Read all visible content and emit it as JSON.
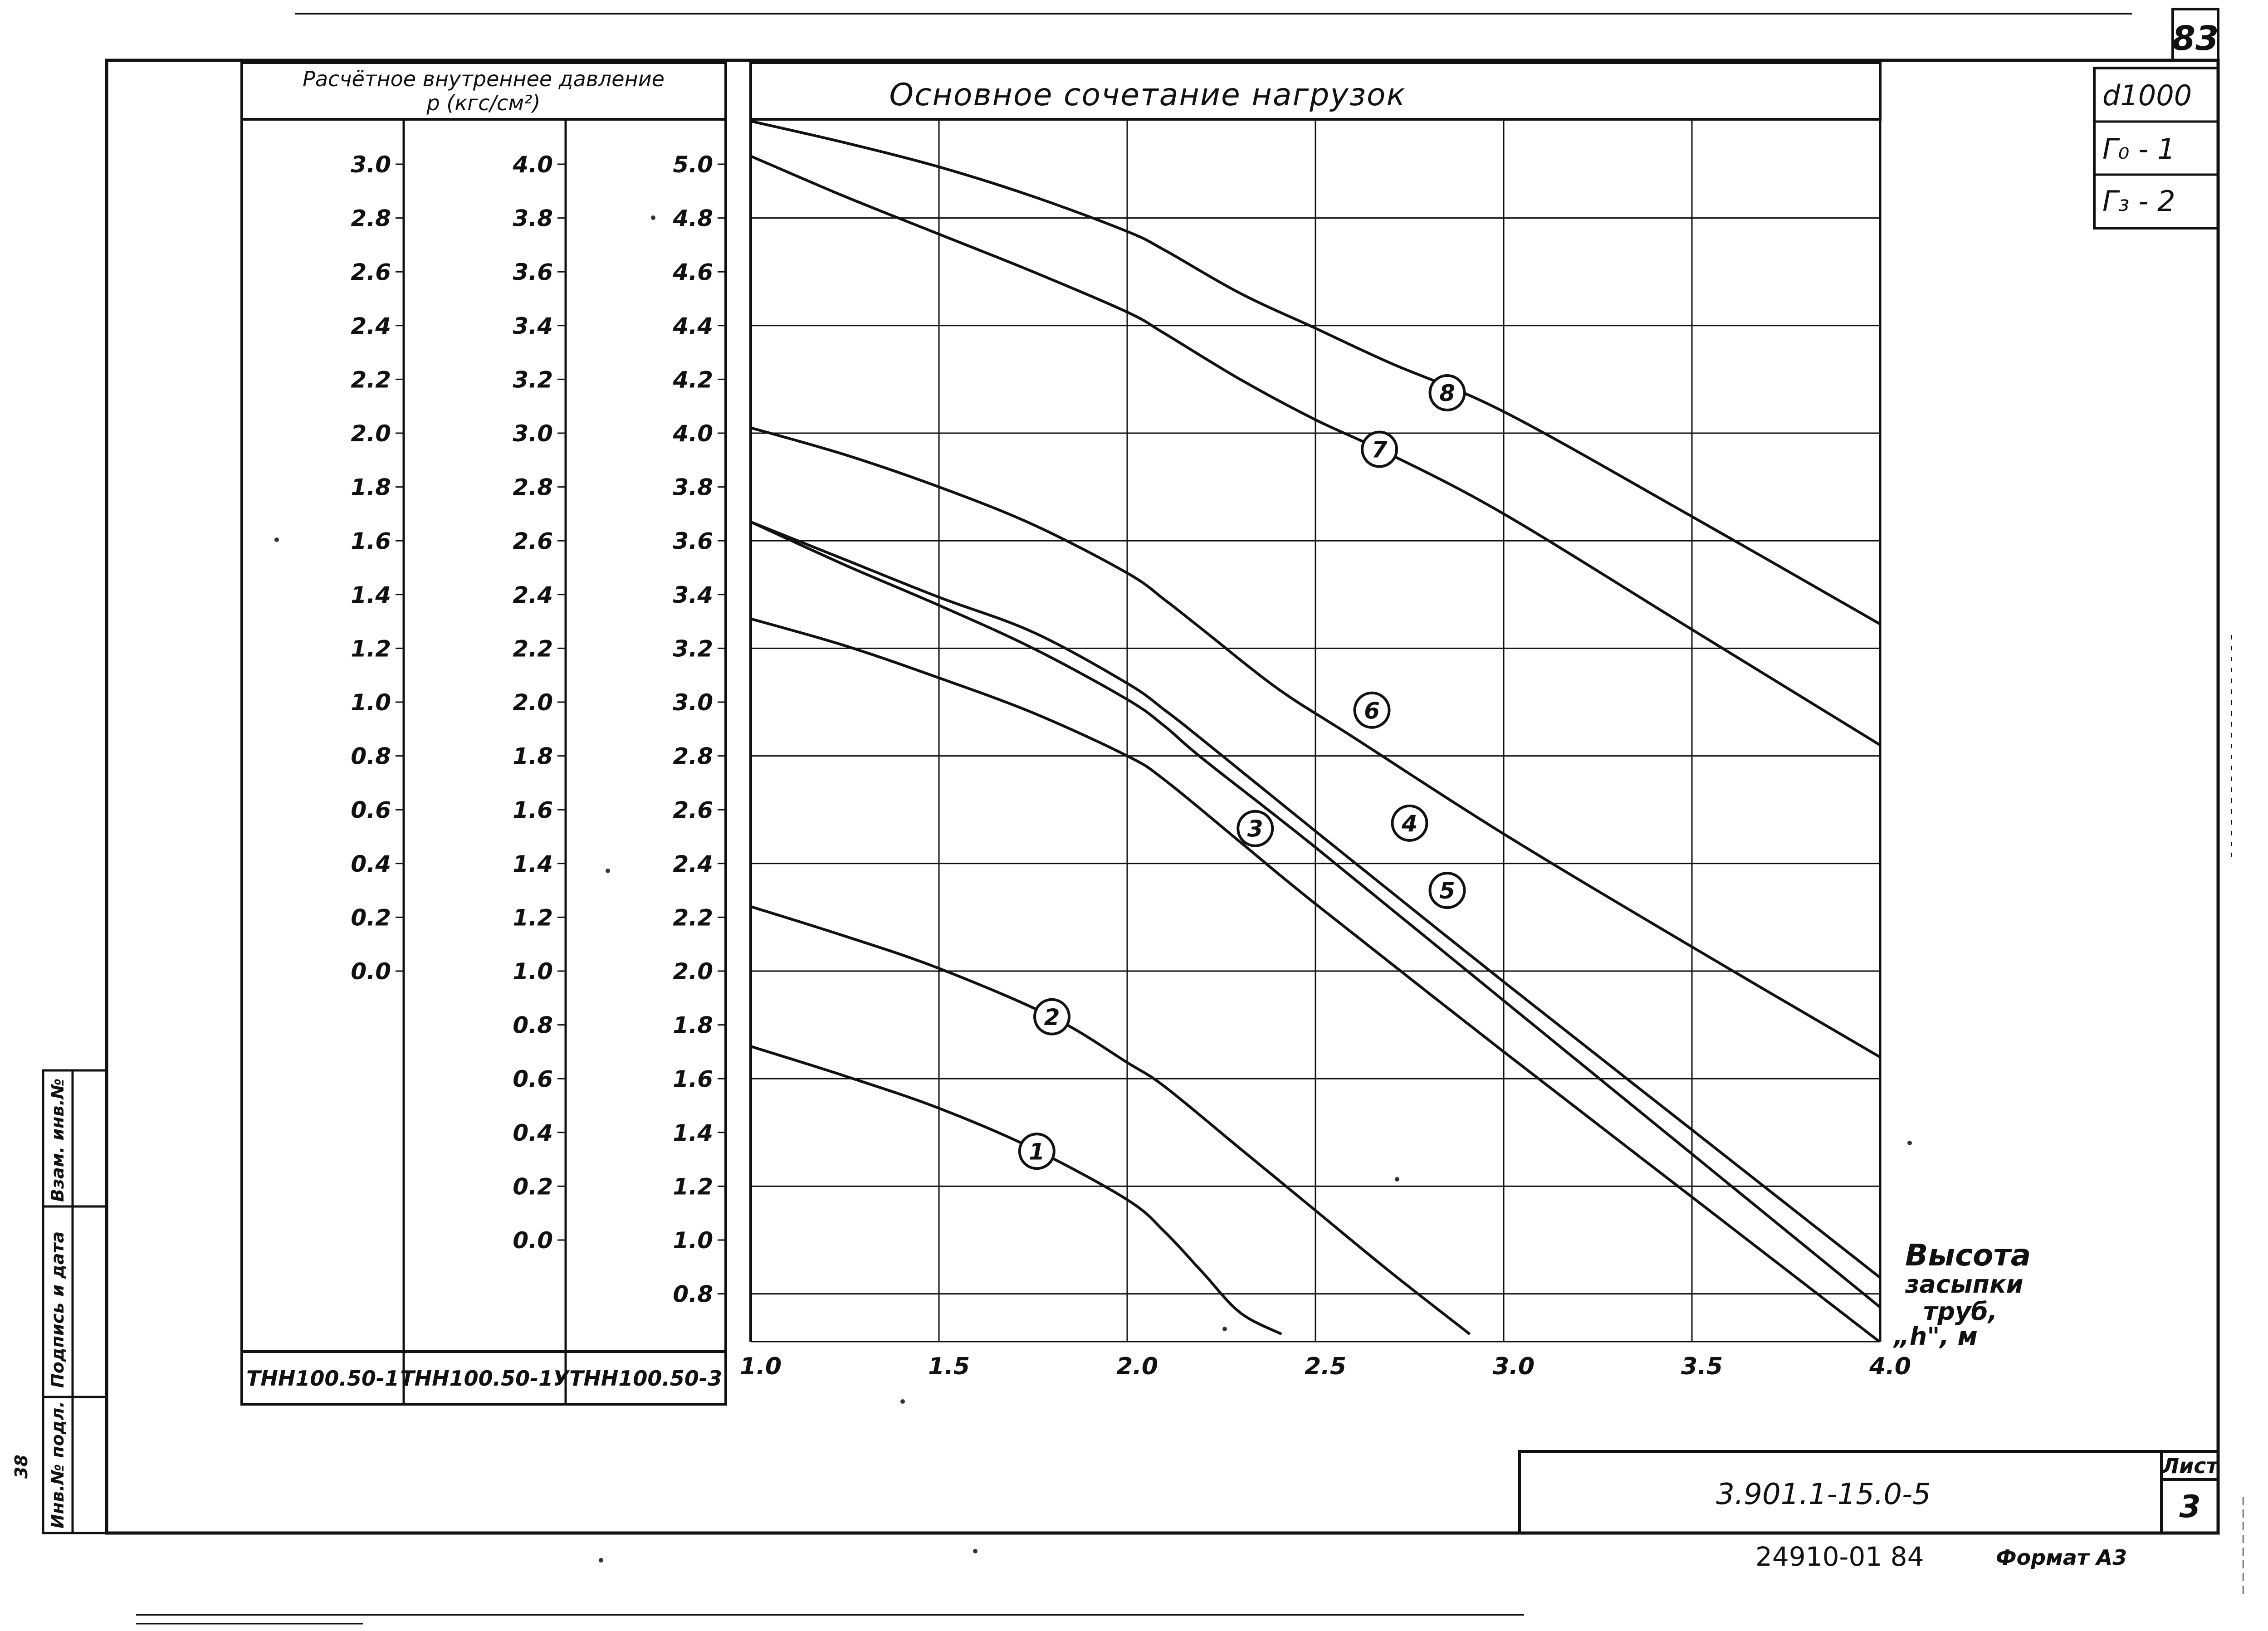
{
  "page": {
    "sheet_number": "83",
    "doc_code": "3.901.1-15.0-5",
    "sheet_label": "Лист",
    "sheet_value": "3",
    "footer_code": "24910-01   84",
    "format_label": "Формат А3",
    "stamp_d": "d1000",
    "stamp_g0": "Г₀ - 1",
    "stamp_g3": "Г₃ - 2",
    "side_labels": [
      "Инв.№ подл.",
      "Подпись и дата",
      "Взам. инв.№"
    ],
    "side_mark": "38"
  },
  "chart_data": {
    "type": "line",
    "title": "Основное сочетание нагрузок",
    "pressure_header_line1": "Расчётное внутреннее давление",
    "pressure_header_line2": "p (кгс/см²)",
    "xlabel_lines": [
      "Высота",
      "засыпки",
      "труб,",
      "„h\", м"
    ],
    "xlim": [
      1.0,
      4.0
    ],
    "x_ticks": [
      "1.0",
      "1.5",
      "2.0",
      "2.5",
      "3.0",
      "3.5",
      "4.0"
    ],
    "x_tick_values": [
      1.0,
      1.5,
      2.0,
      2.5,
      3.0,
      3.5,
      4.0
    ],
    "ylim": [
      0.65,
      5.2
    ],
    "grid": true,
    "pressure_scales": [
      {
        "name": "ТНН100.50-1",
        "ticks": [
          "3.0",
          "2.8",
          "2.6",
          "2.4",
          "2.2",
          "2.0",
          "1.8",
          "1.6",
          "1.4",
          "1.2",
          "1.0",
          "0.8",
          "0.6",
          "0.4",
          "0.2",
          "0.0"
        ],
        "tick_positions": [
          5.0,
          4.8,
          4.6,
          4.4,
          4.2,
          4.0,
          3.8,
          3.6,
          3.4,
          3.2,
          3.0,
          2.8,
          2.6,
          2.4,
          2.2,
          2.0
        ]
      },
      {
        "name": "ТНН100.50-1У",
        "ticks": [
          "4.0",
          "3.8",
          "3.6",
          "3.4",
          "3.2",
          "3.0",
          "2.8",
          "2.6",
          "2.4",
          "2.2",
          "2.0",
          "1.8",
          "1.6",
          "1.4",
          "1.2",
          "1.0",
          "0.8",
          "0.6",
          "0.4",
          "0.2",
          "0.0"
        ],
        "tick_positions": [
          5.0,
          4.8,
          4.6,
          4.4,
          4.2,
          4.0,
          3.8,
          3.6,
          3.4,
          3.2,
          3.0,
          2.8,
          2.6,
          2.4,
          2.2,
          2.0,
          1.8,
          1.6,
          1.4,
          1.2,
          1.0
        ]
      },
      {
        "name": "ТНН100.50-3",
        "ticks": [
          "5.0",
          "4.8",
          "4.6",
          "4.4",
          "4.2",
          "4.0",
          "3.8",
          "3.6",
          "3.4",
          "3.2",
          "3.0",
          "2.8",
          "2.6",
          "2.4",
          "2.2",
          "2.0",
          "1.8",
          "1.6",
          "1.4",
          "1.2",
          "1.0",
          "0.8"
        ],
        "tick_positions": [
          5.0,
          4.8,
          4.6,
          4.4,
          4.2,
          4.0,
          3.8,
          3.6,
          3.4,
          3.2,
          3.0,
          2.8,
          2.6,
          2.4,
          2.2,
          2.0,
          1.8,
          1.6,
          1.4,
          1.2,
          1.0,
          0.8
        ]
      }
    ],
    "series": [
      {
        "name": "1",
        "x": [
          1.0,
          1.25,
          1.5,
          1.75,
          2.0,
          2.1,
          2.2,
          2.3,
          2.41
        ],
        "y": [
          1.72,
          1.61,
          1.49,
          1.34,
          1.15,
          1.03,
          0.88,
          0.73,
          0.65
        ],
        "label_at": [
          1.76,
          1.33
        ]
      },
      {
        "name": "2",
        "x": [
          1.0,
          1.25,
          1.5,
          1.8,
          2.0,
          2.1,
          2.3,
          2.5,
          2.7,
          2.91
        ],
        "y": [
          2.24,
          2.13,
          2.01,
          1.83,
          1.66,
          1.57,
          1.34,
          1.11,
          0.88,
          0.65
        ],
        "label_at": [
          1.8,
          1.83
        ]
      },
      {
        "name": "3",
        "x": [
          1.0,
          1.25,
          1.5,
          1.75,
          2.0,
          2.1,
          2.3,
          2.5,
          3.0,
          3.5,
          4.0
        ],
        "y": [
          3.31,
          3.21,
          3.09,
          2.96,
          2.8,
          2.71,
          2.48,
          2.25,
          1.7,
          1.16,
          0.62
        ],
        "label_at": [
          2.34,
          2.53
        ]
      },
      {
        "name": "4",
        "x": [
          1.0,
          1.25,
          1.5,
          1.75,
          2.0,
          2.1,
          2.2,
          2.5,
          3.0,
          3.5,
          4.0
        ],
        "y": [
          3.67,
          3.53,
          3.39,
          3.26,
          3.07,
          2.97,
          2.86,
          2.52,
          1.96,
          1.41,
          0.86
        ],
        "label_at": [
          2.75,
          2.55
        ]
      },
      {
        "name": "5",
        "x": [
          1.0,
          1.25,
          1.5,
          1.75,
          2.0,
          2.1,
          2.2,
          2.5,
          3.0,
          3.5,
          4.0
        ],
        "y": [
          3.67,
          3.51,
          3.36,
          3.2,
          3.01,
          2.91,
          2.79,
          2.46,
          1.89,
          1.32,
          0.75
        ],
        "label_at": [
          2.85,
          2.3
        ]
      },
      {
        "name": "6",
        "x": [
          1.0,
          1.25,
          1.5,
          1.75,
          2.0,
          2.1,
          2.2,
          2.4,
          2.6,
          3.0,
          3.5,
          4.0
        ],
        "y": [
          4.02,
          3.92,
          3.8,
          3.66,
          3.48,
          3.38,
          3.27,
          3.05,
          2.87,
          2.51,
          2.09,
          1.68
        ],
        "label_at": [
          2.65,
          2.97
        ]
      },
      {
        "name": "7",
        "x": [
          1.0,
          1.25,
          1.5,
          1.75,
          2.0,
          2.1,
          2.3,
          2.5,
          2.7,
          3.0,
          3.5,
          4.0
        ],
        "y": [
          5.03,
          4.88,
          4.74,
          4.6,
          4.45,
          4.37,
          4.2,
          4.05,
          3.92,
          3.7,
          3.27,
          2.84
        ],
        "label_at": [
          2.67,
          3.94
        ]
      },
      {
        "name": "8",
        "x": [
          1.0,
          1.25,
          1.5,
          1.75,
          2.0,
          2.1,
          2.3,
          2.5,
          2.7,
          3.0,
          3.5,
          4.0
        ],
        "y": [
          5.16,
          5.08,
          4.99,
          4.88,
          4.75,
          4.68,
          4.52,
          4.39,
          4.26,
          4.08,
          3.69,
          3.29
        ],
        "label_at": [
          2.85,
          4.15
        ]
      }
    ]
  }
}
